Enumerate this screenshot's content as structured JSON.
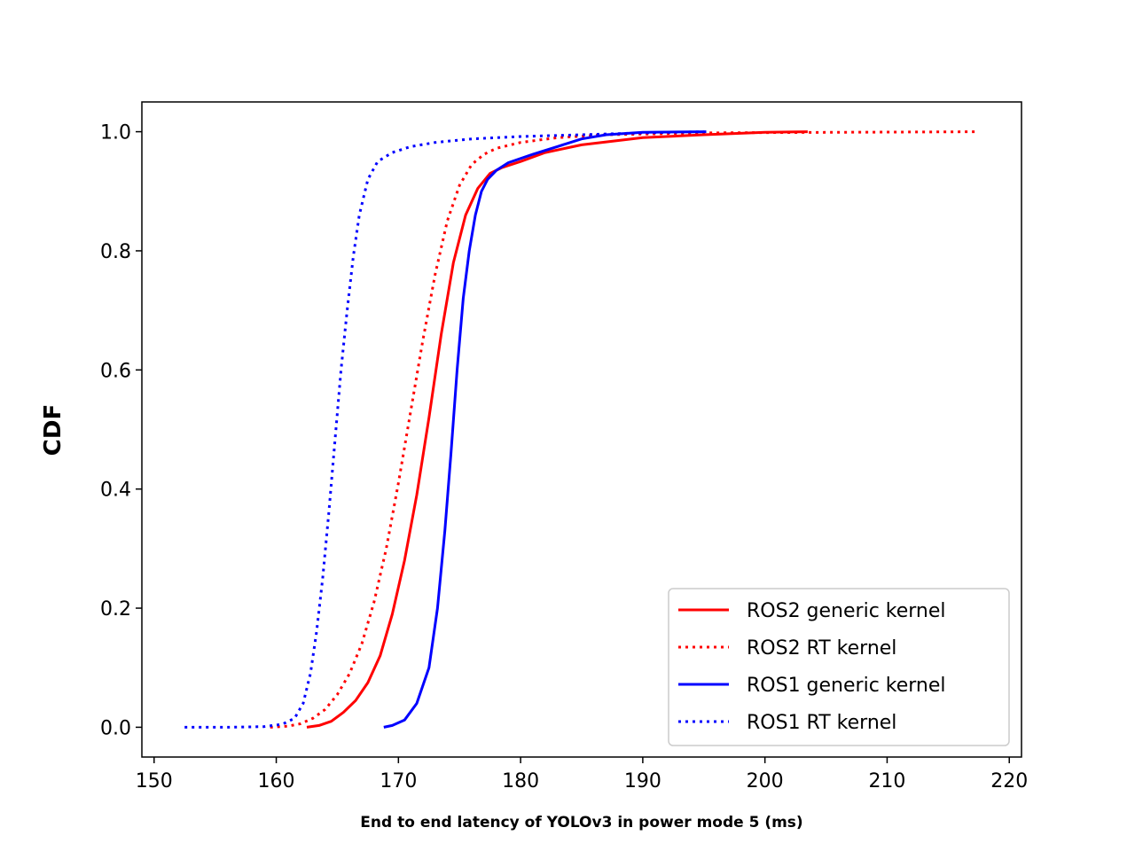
{
  "chart_data": {
    "type": "line",
    "title": "",
    "xlabel": "End to end latency of YOLOv3 in power mode 5 (ms)",
    "ylabel": "CDF",
    "xlim": [
      149,
      221
    ],
    "ylim": [
      -0.05,
      1.05
    ],
    "xticks": [
      150,
      160,
      170,
      180,
      190,
      200,
      210,
      220
    ],
    "yticks": [
      0.0,
      0.2,
      0.4,
      0.6,
      0.8,
      1.0
    ],
    "xtick_labels": [
      "150",
      "160",
      "170",
      "180",
      "190",
      "200",
      "210",
      "220"
    ],
    "ytick_labels": [
      "0.0",
      "0.2",
      "0.4",
      "0.6",
      "0.8",
      "1.0"
    ],
    "grid": false,
    "legend_position": "bottom-right",
    "series": [
      {
        "name": "ROS2 generic kernel",
        "color": "#ff0000",
        "style": "solid",
        "x": [
          162.5,
          163.5,
          164.5,
          165.5,
          166.5,
          167.5,
          168.5,
          169.5,
          170.5,
          171.5,
          172.5,
          173.5,
          174.5,
          175.5,
          176.5,
          177.5,
          178.5,
          180,
          182,
          185,
          190,
          195,
          200,
          203.5
        ],
        "y": [
          0.0,
          0.003,
          0.01,
          0.025,
          0.045,
          0.075,
          0.12,
          0.19,
          0.28,
          0.39,
          0.52,
          0.66,
          0.78,
          0.86,
          0.905,
          0.93,
          0.94,
          0.95,
          0.965,
          0.978,
          0.99,
          0.995,
          0.999,
          1.0
        ]
      },
      {
        "name": "ROS2 RT kernel",
        "color": "#ff0000",
        "style": "dotted",
        "x": [
          159.5,
          161,
          162,
          163,
          164,
          165,
          166,
          167,
          168,
          169,
          170,
          171,
          172,
          173,
          174,
          175,
          176,
          177,
          178,
          180,
          183,
          187,
          195,
          205,
          217.5
        ],
        "y": [
          0.0,
          0.002,
          0.006,
          0.015,
          0.03,
          0.055,
          0.09,
          0.14,
          0.21,
          0.3,
          0.41,
          0.53,
          0.65,
          0.76,
          0.85,
          0.91,
          0.945,
          0.962,
          0.972,
          0.982,
          0.99,
          0.995,
          0.998,
          0.999,
          1.0
        ]
      },
      {
        "name": "ROS1 generic kernel",
        "color": "#0000ff",
        "style": "solid",
        "x": [
          168.8,
          169.5,
          170.5,
          171.5,
          172.5,
          173.2,
          173.8,
          174.3,
          174.8,
          175.3,
          175.8,
          176.3,
          176.8,
          177.3,
          178,
          179,
          181,
          183,
          185,
          187,
          190,
          195.2
        ],
        "y": [
          0.0,
          0.003,
          0.012,
          0.04,
          0.1,
          0.2,
          0.33,
          0.46,
          0.6,
          0.72,
          0.8,
          0.86,
          0.9,
          0.92,
          0.935,
          0.948,
          0.962,
          0.975,
          0.988,
          0.995,
          0.999,
          1.0
        ]
      },
      {
        "name": "ROS1 RT kernel",
        "color": "#0000ff",
        "style": "dotted",
        "x": [
          152.5,
          156,
          159,
          160.5,
          161.5,
          162.2,
          162.8,
          163.3,
          163.8,
          164.3,
          164.8,
          165.3,
          165.8,
          166.3,
          166.8,
          167.5,
          168.3,
          169.5,
          171,
          173,
          176,
          180,
          185,
          190,
          195
        ],
        "y": [
          0.0,
          0.0,
          0.001,
          0.005,
          0.015,
          0.04,
          0.09,
          0.16,
          0.25,
          0.36,
          0.48,
          0.6,
          0.7,
          0.79,
          0.86,
          0.92,
          0.95,
          0.965,
          0.975,
          0.982,
          0.988,
          0.992,
          0.995,
          0.998,
          1.0
        ]
      }
    ]
  }
}
